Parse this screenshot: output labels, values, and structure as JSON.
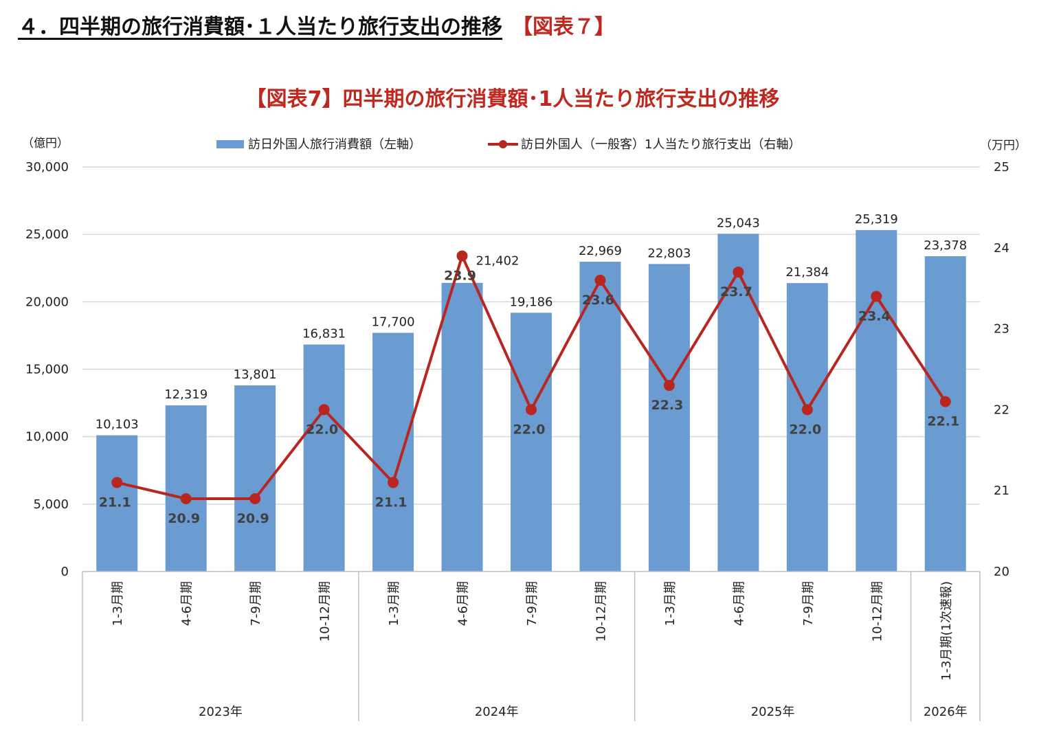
{
  "heading": {
    "main": "４．四半期の旅行消費額･１人当たり旅行支出の推移",
    "tag": "【図表７】"
  },
  "chart_data": {
    "type": "bar+line",
    "title": "【図表7】四半期の旅行消費額･1人当たり旅行支出の推移",
    "left_unit": "（億円）",
    "right_unit": "（万円）",
    "left_ylim": [
      0,
      30000
    ],
    "left_ticks": [
      0,
      5000,
      10000,
      15000,
      20000,
      25000,
      30000
    ],
    "right_ylim": [
      20,
      25
    ],
    "right_ticks": [
      20,
      21,
      22,
      23,
      24,
      25
    ],
    "grid": true,
    "legend_position": "top",
    "categories": [
      "1-3月期",
      "4-6月期",
      "7-9月期",
      "10-12月期",
      "1-3月期",
      "4-6月期",
      "7-9月期",
      "10-12月期",
      "1-3月期",
      "4-6月期",
      "7-9月期",
      "10-12月期",
      "1-3月期(1次速報)"
    ],
    "groups": [
      {
        "label": "2023年",
        "count": 4
      },
      {
        "label": "2024年",
        "count": 4
      },
      {
        "label": "2025年",
        "count": 4
      },
      {
        "label": "2026年",
        "count": 1
      }
    ],
    "series": [
      {
        "name": "訪日外国人旅行消費額（左軸）",
        "type": "bar",
        "axis": "left",
        "color": "#6a9bd1",
        "values": [
          10103,
          12319,
          13801,
          16831,
          17700,
          21402,
          19186,
          22969,
          22803,
          25043,
          21384,
          25319,
          23378
        ]
      },
      {
        "name": "訪日外国人（一般客）1人当たり旅行支出（右軸）",
        "type": "line",
        "axis": "right",
        "color": "#b8261f",
        "values": [
          21.1,
          20.9,
          20.9,
          22.0,
          21.1,
          23.9,
          22.0,
          23.6,
          22.3,
          23.7,
          22.0,
          23.4,
          22.1
        ]
      }
    ]
  }
}
